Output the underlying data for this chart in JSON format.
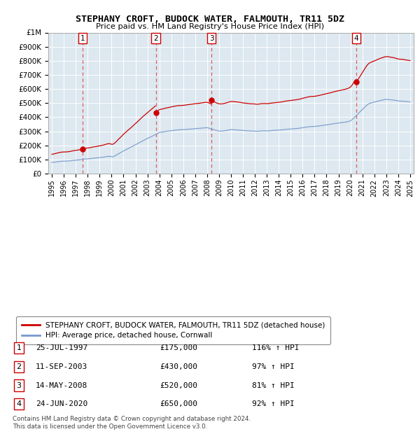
{
  "title": "STEPHANY CROFT, BUDOCK WATER, FALMOUTH, TR11 5DZ",
  "subtitle": "Price paid vs. HM Land Registry's House Price Index (HPI)",
  "background_color": "#dde8f0",
  "ylim": [
    0,
    1000000
  ],
  "yticks": [
    0,
    100000,
    200000,
    300000,
    400000,
    500000,
    600000,
    700000,
    800000,
    900000,
    1000000
  ],
  "ytick_labels": [
    "£0",
    "£100K",
    "£200K",
    "£300K",
    "£400K",
    "£500K",
    "£600K",
    "£700K",
    "£800K",
    "£900K",
    "£1M"
  ],
  "xlim_start": 1994.7,
  "xlim_end": 2025.3,
  "xticks": [
    1995,
    1996,
    1997,
    1998,
    1999,
    2000,
    2001,
    2002,
    2003,
    2004,
    2005,
    2006,
    2007,
    2008,
    2009,
    2010,
    2011,
    2012,
    2013,
    2014,
    2015,
    2016,
    2017,
    2018,
    2019,
    2020,
    2021,
    2022,
    2023,
    2024,
    2025
  ],
  "sales": [
    {
      "label": "1",
      "year": 1997.56,
      "price": 175000,
      "date": "25-JUL-1997",
      "pct": "116%",
      "dir": "↑"
    },
    {
      "label": "2",
      "year": 2003.7,
      "price": 430000,
      "date": "11-SEP-2003",
      "pct": "97%",
      "dir": "↑"
    },
    {
      "label": "3",
      "year": 2008.37,
      "price": 520000,
      "date": "14-MAY-2008",
      "pct": "81%",
      "dir": "↑"
    },
    {
      "label": "4",
      "year": 2020.48,
      "price": 650000,
      "date": "24-JUN-2020",
      "pct": "92%",
      "dir": "↑"
    }
  ],
  "red_line_color": "#cc0000",
  "blue_line_color": "#7799cc",
  "dashed_line_color": "#dd4444",
  "legend1": "STEPHANY CROFT, BUDOCK WATER, FALMOUTH, TR11 5DZ (detached house)",
  "legend2": "HPI: Average price, detached house, Cornwall",
  "table_rows": [
    [
      "1",
      "25-JUL-1997",
      "£175,000",
      "116% ↑ HPI"
    ],
    [
      "2",
      "11-SEP-2003",
      "£430,000",
      "97% ↑ HPI"
    ],
    [
      "3",
      "14-MAY-2008",
      "£520,000",
      "81% ↑ HPI"
    ],
    [
      "4",
      "24-JUN-2020",
      "£650,000",
      "92% ↑ HPI"
    ]
  ],
  "footer1": "Contains HM Land Registry data © Crown copyright and database right 2024.",
  "footer2": "This data is licensed under the Open Government Licence v3.0."
}
